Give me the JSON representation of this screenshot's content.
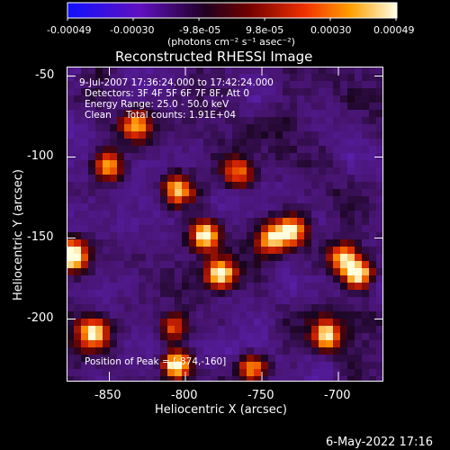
{
  "colorbar": {
    "tick_labels": [
      "-0.00049",
      "-0.00030",
      "-9.8e-05",
      "9.8e-05",
      "0.00030",
      "0.00049"
    ],
    "unit_label": "(photons cm⁻² s⁻¹ asec⁻²)"
  },
  "chart_data": {
    "type": "heatmap",
    "title": "Reconstructed RHESSI Image",
    "xlabel": "Heliocentric X (arcsec)",
    "ylabel": "Heliocentric Y (arcsec)",
    "xlim": [
      -877,
      -678
    ],
    "ylim": [
      -238,
      -44
    ],
    "x_ticks": [
      -850,
      -800,
      -750,
      -700
    ],
    "y_ticks": [
      -50,
      -100,
      -150,
      -200
    ],
    "colormap": "red-temperature (blue-violet low, black/red mid, yellow-white high)",
    "value_range": [
      -0.00049,
      0.00049
    ],
    "annotations": {
      "time_range": "9-Jul-2007 17:36:24.000 to 17:42:24.000",
      "detectors": "Detectors: 3F 4F 5F 6F 7F 8F, Att 0",
      "energy": "Energy Range: 25.0 - 50.0 keV",
      "clean_label": "Clean",
      "total_counts": "Total counts: 1.91E+04",
      "peak": "Position of Peak = [-874,-160]"
    },
    "bright_sources": [
      {
        "x": -874,
        "y": -160,
        "level": 1.0
      },
      {
        "x": -808,
        "y": -228,
        "level": 0.95
      },
      {
        "x": -780,
        "y": -172,
        "level": 0.9
      },
      {
        "x": -790,
        "y": -148,
        "level": 0.85
      },
      {
        "x": -808,
        "y": -120,
        "level": 0.7
      },
      {
        "x": -860,
        "y": -208,
        "level": 0.85
      },
      {
        "x": -694,
        "y": -172,
        "level": 0.9
      },
      {
        "x": -703,
        "y": -162,
        "level": 0.7
      },
      {
        "x": -714,
        "y": -210,
        "level": 0.8
      },
      {
        "x": -735,
        "y": -145,
        "level": 0.75
      },
      {
        "x": -748,
        "y": -150,
        "level": 0.7
      },
      {
        "x": -833,
        "y": -80,
        "level": 0.6
      },
      {
        "x": -851,
        "y": -105,
        "level": 0.7
      },
      {
        "x": -760,
        "y": -230,
        "level": 0.7
      },
      {
        "x": -769,
        "y": -110,
        "level": 0.55
      },
      {
        "x": -810,
        "y": -205,
        "level": 0.55
      }
    ]
  },
  "footer": {
    "date": "6-May-2022 17:16"
  }
}
